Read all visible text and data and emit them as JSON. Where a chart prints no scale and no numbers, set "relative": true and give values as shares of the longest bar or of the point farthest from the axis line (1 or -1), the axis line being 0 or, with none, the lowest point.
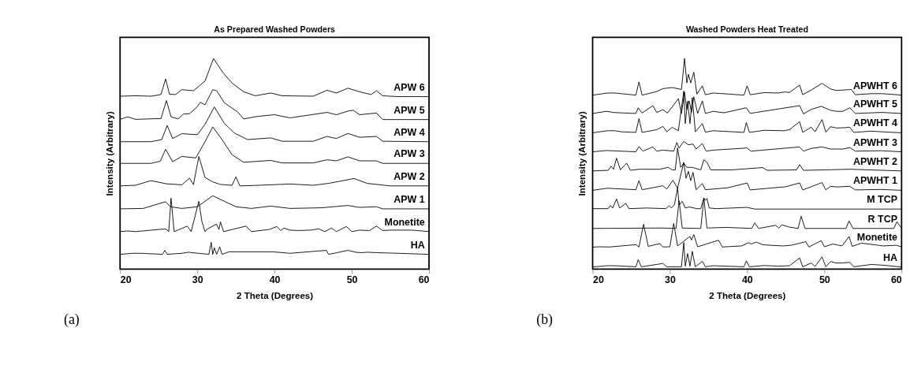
{
  "chart_data": [
    {
      "type": "line",
      "title": "As Prepared Washed Powders",
      "xlabel": "2 Theta (Degrees)",
      "ylabel": "Intensity (Arbitrary)",
      "xlim": [
        20,
        60
      ],
      "xticks": [
        20,
        30,
        40,
        50,
        60
      ],
      "relative": true,
      "tick_labels": "x",
      "annotations": [
        "(a)"
      ],
      "series": [
        {
          "name": "APW 6",
          "color": "#000000",
          "x": [
            20,
            22,
            24,
            25.3,
            25.9,
            26.4,
            27.2,
            28,
            29.5,
            31,
            32.1,
            33.3,
            34.5,
            36,
            37.5,
            39.5,
            41,
            45,
            46.8,
            48,
            49.5,
            51,
            52.5,
            53.2,
            54,
            56,
            60
          ],
          "values": [
            0.821,
            0.823,
            0.821,
            0.829,
            0.903,
            0.83,
            0.829,
            0.852,
            0.847,
            0.893,
            1.0,
            0.934,
            0.883,
            0.842,
            0.823,
            0.836,
            0.823,
            0.821,
            0.849,
            0.836,
            0.859,
            0.842,
            0.829,
            0.847,
            0.823,
            0.819,
            0.819
          ]
        },
        {
          "name": "APW 5",
          "color": "#000000",
          "x": [
            20,
            21,
            22,
            25.3,
            26,
            26.6,
            27.5,
            28.2,
            29,
            29.9,
            30.4,
            31,
            32,
            32.5,
            33.5,
            34.5,
            35.2,
            36,
            37.8,
            40,
            42,
            46.8,
            48,
            49.6,
            50.2,
            51,
            53.2,
            54,
            60
          ],
          "values": [
            0.711,
            0.723,
            0.711,
            0.715,
            0.8,
            0.723,
            0.713,
            0.736,
            0.738,
            0.767,
            0.792,
            0.78,
            0.852,
            0.847,
            0.79,
            0.764,
            0.747,
            0.713,
            0.725,
            0.733,
            0.718,
            0.744,
            0.733,
            0.751,
            0.754,
            0.733,
            0.741,
            0.71,
            0.71
          ]
        },
        {
          "name": "APW 4",
          "color": "#000000",
          "x": [
            20,
            24,
            25.4,
            26.1,
            26.8,
            28,
            30,
            31,
            32.2,
            33.5,
            34.8,
            36.5,
            39.5,
            41,
            45,
            46.8,
            48,
            49.5,
            51,
            53.2,
            54,
            60
          ],
          "values": [
            0.605,
            0.605,
            0.615,
            0.682,
            0.62,
            0.643,
            0.638,
            0.687,
            0.77,
            0.692,
            0.646,
            0.615,
            0.623,
            0.607,
            0.607,
            0.63,
            0.62,
            0.644,
            0.626,
            0.63,
            0.607,
            0.605
          ]
        },
        {
          "name": "APW 3",
          "color": "#000000",
          "x": [
            20,
            24,
            25.2,
            25.9,
            26.8,
            28,
            29.8,
            31,
            32,
            33.2,
            34.5,
            36,
            39.5,
            41,
            45,
            46.8,
            48,
            49.5,
            51,
            53.2,
            54,
            60
          ],
          "values": [
            0.502,
            0.502,
            0.512,
            0.569,
            0.51,
            0.535,
            0.528,
            0.605,
            0.675,
            0.615,
            0.543,
            0.507,
            0.516,
            0.504,
            0.504,
            0.519,
            0.514,
            0.533,
            0.514,
            0.514,
            0.502,
            0.502
          ]
        },
        {
          "name": "APW 2",
          "color": "#000000",
          "x": [
            20,
            22,
            24,
            26,
            28,
            29,
            29.5,
            30.2,
            31,
            32,
            33,
            34.5,
            35,
            35.5,
            38,
            42,
            45,
            47,
            50.3,
            52,
            55,
            60
          ],
          "values": [
            0.395,
            0.398,
            0.42,
            0.405,
            0.4,
            0.432,
            0.401,
            0.535,
            0.435,
            0.414,
            0.402,
            0.398,
            0.438,
            0.395,
            0.398,
            0.404,
            0.398,
            0.407,
            0.43,
            0.407,
            0.395,
            0.395
          ]
        },
        {
          "name": "APW 1",
          "color": "#000000",
          "x": [
            20,
            23,
            25.9,
            26.5,
            28,
            30,
            32,
            33.5,
            35,
            37,
            39.5,
            42,
            46,
            49.5,
            51,
            53.2,
            54,
            60
          ],
          "values": [
            0.286,
            0.288,
            0.32,
            0.296,
            0.288,
            0.296,
            0.348,
            0.322,
            0.296,
            0.288,
            0.299,
            0.288,
            0.291,
            0.302,
            0.293,
            0.296,
            0.286,
            0.286
          ]
        },
        {
          "name": "Monetite",
          "color": "#000000",
          "x": [
            20,
            21,
            22,
            25.9,
            26.3,
            26.6,
            27,
            28.7,
            29.2,
            30.2,
            30.6,
            31,
            31.2,
            32.5,
            32.8,
            33,
            33.4,
            36.3,
            37,
            39.3,
            40.3,
            40.8,
            41.2,
            42,
            43,
            44.7,
            45.7,
            46.5,
            47.4,
            48,
            49.3,
            50,
            51,
            52.3,
            53.2,
            54,
            55,
            57.8,
            60
          ],
          "values": [
            0.178,
            0.181,
            0.178,
            0.191,
            0.178,
            0.337,
            0.178,
            0.204,
            0.178,
            0.322,
            0.225,
            0.178,
            0.188,
            0.214,
            0.188,
            0.224,
            0.178,
            0.204,
            0.178,
            0.188,
            0.202,
            0.183,
            0.195,
            0.185,
            0.183,
            0.185,
            0.191,
            0.178,
            0.195,
            0.178,
            0.202,
            0.178,
            0.185,
            0.183,
            0.204,
            0.183,
            0.185,
            0.185,
            0.178
          ]
        },
        {
          "name": "HA",
          "color": "#000000",
          "x": [
            20,
            21.6,
            22.8,
            25.5,
            25.8,
            26.1,
            28,
            28.8,
            31.5,
            31.8,
            32.0,
            32.2,
            32.5,
            32.9,
            33.2,
            34.1,
            39.8,
            42,
            46.7,
            47,
            48.1,
            49.5,
            50.5,
            51.3,
            52,
            53.2,
            56,
            60
          ],
          "values": [
            0.07,
            0.075,
            0.075,
            0.07,
            0.089,
            0.07,
            0.075,
            0.08,
            0.07,
            0.127,
            0.07,
            0.101,
            0.07,
            0.106,
            0.07,
            0.082,
            0.082,
            0.075,
            0.089,
            0.07,
            0.078,
            0.089,
            0.08,
            0.078,
            0.08,
            0.078,
            0.075,
            0.07
          ]
        }
      ]
    },
    {
      "type": "line",
      "title": "Washed Powders Heat Treated",
      "xlabel": "2 Theta (Degrees)",
      "ylabel": "Intensity (Arbitrary)",
      "xlim": [
        20,
        60
      ],
      "xticks": [
        20,
        30,
        40,
        50,
        60
      ],
      "relative": true,
      "tick_labels": "x",
      "annotations": [
        "(b)"
      ],
      "series": [
        {
          "name": "APWHT 6",
          "color": "#000000",
          "x": [
            20,
            21.9,
            22.9,
            23.7,
            25.6,
            26.0,
            26.4,
            28.3,
            29.1,
            30.3,
            31.5,
            31.9,
            32.2,
            32.4,
            32.7,
            33.1,
            33.5,
            34.2,
            34.6,
            35.6,
            39.6,
            40.0,
            40.4,
            42.2,
            44.0,
            44.8,
            45.5,
            46.8,
            47.2,
            48.3,
            49.7,
            50.8,
            51.6,
            52.4,
            53.5,
            54,
            56.1,
            57.4,
            58.3,
            60
          ],
          "values": [
            0.826,
            0.836,
            0.836,
            0.833,
            0.826,
            0.889,
            0.826,
            0.843,
            0.857,
            0.862,
            0.853,
            1.0,
            0.884,
            0.925,
            0.884,
            0.935,
            0.831,
            0.87,
            0.828,
            0.836,
            0.826,
            0.87,
            0.828,
            0.838,
            0.836,
            0.841,
            0.839,
            0.874,
            0.828,
            0.85,
            0.882,
            0.855,
            0.848,
            0.85,
            0.853,
            0.828,
            0.833,
            0.833,
            0.831,
            0.826
          ]
        },
        {
          "name": "APWHT 5",
          "color": "#000000",
          "x": [
            20,
            21.8,
            22.9,
            25.6,
            25.9,
            26.4,
            27.8,
            28.3,
            29.1,
            29.7,
            31.1,
            31.5,
            31.9,
            32.2,
            32.5,
            32.8,
            33.1,
            33.6,
            34.2,
            34.6,
            35.6,
            37.0,
            39.9,
            40.4,
            41.2,
            46.8,
            47.3,
            48.3,
            49.6,
            50.8,
            51.6,
            52.4,
            53.3,
            54,
            57.4,
            60
          ],
          "values": [
            0.739,
            0.749,
            0.743,
            0.739,
            0.766,
            0.741,
            0.776,
            0.744,
            0.757,
            0.741,
            0.809,
            0.739,
            0.841,
            0.758,
            0.799,
            0.744,
            0.818,
            0.739,
            0.799,
            0.739,
            0.749,
            0.742,
            0.766,
            0.739,
            0.744,
            0.776,
            0.737,
            0.758,
            0.773,
            0.754,
            0.749,
            0.749,
            0.766,
            0.739,
            0.744,
            0.739
          ]
        },
        {
          "name": "APWHT 4",
          "color": "#000000",
          "x": [
            20,
            21.9,
            22.9,
            23.7,
            25.6,
            26.0,
            26.4,
            28.3,
            29.1,
            29.6,
            30.3,
            31.1,
            31.8,
            32.0,
            32.3,
            32.6,
            32.9,
            33.3,
            34.2,
            34.6,
            35.6,
            39.6,
            39.9,
            40.3,
            42.2,
            44.8,
            45.5,
            46.8,
            47.2,
            48.3,
            48.8,
            49.7,
            50.2,
            50.8,
            51.6,
            52.4,
            53.3,
            53.8,
            56.1,
            57.4,
            60
          ],
          "values": [
            0.647,
            0.657,
            0.657,
            0.652,
            0.649,
            0.715,
            0.649,
            0.662,
            0.678,
            0.652,
            0.673,
            0.657,
            0.845,
            0.691,
            0.797,
            0.691,
            0.814,
            0.652,
            0.691,
            0.65,
            0.657,
            0.649,
            0.696,
            0.649,
            0.659,
            0.657,
            0.662,
            0.7,
            0.649,
            0.674,
            0.652,
            0.71,
            0.65,
            0.676,
            0.67,
            0.671,
            0.673,
            0.649,
            0.655,
            0.652,
            0.647
          ]
        },
        {
          "name": "APWHT 3",
          "color": "#000000",
          "x": [
            20,
            21.8,
            25.6,
            26.0,
            26.5,
            27.8,
            28.3,
            29.1,
            30.5,
            30.9,
            31.2,
            31.8,
            32.4,
            33.0,
            33.4,
            34.2,
            34.7,
            35.7,
            40.0,
            40.5,
            46.8,
            47.3,
            48.3,
            49.7,
            50.8,
            52.4,
            53.3,
            54,
            57.4,
            60
          ],
          "values": [
            0.557,
            0.563,
            0.557,
            0.582,
            0.56,
            0.58,
            0.56,
            0.565,
            0.56,
            0.601,
            0.575,
            0.606,
            0.59,
            0.594,
            0.57,
            0.596,
            0.56,
            0.565,
            0.575,
            0.56,
            0.58,
            0.56,
            0.573,
            0.58,
            0.57,
            0.57,
            0.577,
            0.56,
            0.562,
            0.557
          ]
        },
        {
          "name": "APWHT 2",
          "color": "#000000",
          "x": [
            20,
            22.0,
            22.4,
            22.7,
            23.1,
            23.6,
            24.4,
            24.9,
            26.0,
            28.7,
            29.8,
            30.3,
            30.7,
            31.0,
            31.4,
            31.8,
            32.2,
            32.9,
            34.0,
            34.4,
            34.8,
            35.3,
            38.0,
            42.0,
            42.6,
            46.4,
            46.8,
            47.3,
            50,
            53.3,
            60
          ],
          "values": [
            0.466,
            0.469,
            0.488,
            0.474,
            0.527,
            0.471,
            0.503,
            0.469,
            0.474,
            0.474,
            0.483,
            0.471,
            0.471,
            0.575,
            0.483,
            0.503,
            0.483,
            0.483,
            0.471,
            0.519,
            0.507,
            0.471,
            0.471,
            0.482,
            0.469,
            0.471,
            0.496,
            0.469,
            0.471,
            0.474,
            0.466
          ]
        },
        {
          "name": "APWHT 1",
          "color": "#000000",
          "x": [
            20,
            21.9,
            22.9,
            25.6,
            26.0,
            26.4,
            28.3,
            29.1,
            29.6,
            30.4,
            31.0,
            31.8,
            32.1,
            32.4,
            32.7,
            33.0,
            33.4,
            34.2,
            34.6,
            37.5,
            40.0,
            40.4,
            45.0,
            46.8,
            47.2,
            48.3,
            49.7,
            50.2,
            50.8,
            51.6,
            53.3,
            54,
            57.4,
            60
          ],
          "values": [
            0.374,
            0.384,
            0.382,
            0.377,
            0.42,
            0.377,
            0.39,
            0.396,
            0.38,
            0.422,
            0.384,
            0.507,
            0.431,
            0.464,
            0.42,
            0.459,
            0.377,
            0.406,
            0.377,
            0.386,
            0.409,
            0.376,
            0.391,
            0.409,
            0.376,
            0.391,
            0.411,
            0.376,
            0.393,
            0.39,
            0.393,
            0.376,
            0.378,
            0.374
          ]
        },
        {
          "name": "M TCP",
          "color": "#000000",
          "x": [
            20,
            22.0,
            22.3,
            22.6,
            23.1,
            23.5,
            24.3,
            24.7,
            27,
            29.5,
            29.9,
            30.2,
            30.6,
            31.0,
            31.2,
            31.6,
            32.0,
            32.5,
            33.5,
            34.0,
            34.4,
            34.6,
            34.8,
            35.1,
            36,
            40,
            41,
            60
          ],
          "values": [
            0.287,
            0.287,
            0.302,
            0.29,
            0.333,
            0.29,
            0.312,
            0.287,
            0.29,
            0.287,
            0.301,
            0.29,
            0.306,
            0.386,
            0.304,
            0.322,
            0.29,
            0.295,
            0.287,
            0.287,
            0.338,
            0.326,
            0.336,
            0.29,
            0.287,
            0.293,
            0.285,
            0.285
          ]
        },
        {
          "name": "R TCP",
          "color": "#000000",
          "x": [
            20,
            28.8,
            30.8,
            31.2,
            31.6,
            34.0,
            34.4,
            34.8,
            37.3,
            40.6,
            41.0,
            41.5,
            43.7,
            44.1,
            44.5,
            45.4,
            46.6,
            47.0,
            47.5,
            52.8,
            53.2,
            53.7,
            59.0,
            59.4,
            60
          ],
          "values": [
            0.193,
            0.195,
            0.193,
            0.324,
            0.195,
            0.193,
            0.338,
            0.195,
            0.198,
            0.193,
            0.219,
            0.193,
            0.208,
            0.195,
            0.21,
            0.2,
            0.193,
            0.251,
            0.193,
            0.193,
            0.229,
            0.193,
            0.193,
            0.225,
            0.193
          ]
        },
        {
          "name": "Monetite",
          "color": "#000000",
          "x": [
            20,
            20.8,
            22.2,
            25.6,
            26.0,
            26.6,
            27.2,
            28.7,
            29.1,
            30.0,
            30.5,
            31.0,
            32.6,
            32.8,
            33.1,
            33.6,
            36.3,
            36.8,
            39.3,
            40.2,
            40.5,
            41.2,
            42,
            43,
            44.7,
            45.7,
            47.6,
            48,
            49.6,
            50,
            51.1,
            52.3,
            53.2,
            53.6,
            54.8,
            56.4,
            57.6,
            59.3,
            60
          ],
          "values": [
            0.104,
            0.106,
            0.105,
            0.116,
            0.105,
            0.213,
            0.108,
            0.121,
            0.105,
            0.106,
            0.217,
            0.11,
            0.155,
            0.138,
            0.164,
            0.106,
            0.137,
            0.105,
            0.11,
            0.126,
            0.119,
            0.128,
            0.116,
            0.113,
            0.11,
            0.113,
            0.13,
            0.105,
            0.135,
            0.106,
            0.119,
            0.11,
            0.155,
            0.108,
            0.123,
            0.116,
            0.11,
            0.113,
            0.106
          ]
        },
        {
          "name": "HA",
          "color": "#000000",
          "x": [
            20,
            21.9,
            22.9,
            25.6,
            25.9,
            26.3,
            28.3,
            29.1,
            29.6,
            31.5,
            31.8,
            32.0,
            32.3,
            32.6,
            32.9,
            33.3,
            34.2,
            34.6,
            35.6,
            39.6,
            39.9,
            40.3,
            42.2,
            44.0,
            45.5,
            46.8,
            47.2,
            48.3,
            48.8,
            49.7,
            50.2,
            50.8,
            51.5,
            52.2,
            53.3,
            53.8,
            56.1,
            57.4,
            60
          ],
          "values": [
            0.01,
            0.016,
            0.016,
            0.011,
            0.045,
            0.011,
            0.022,
            0.027,
            0.011,
            0.011,
            0.126,
            0.014,
            0.074,
            0.014,
            0.084,
            0.011,
            0.037,
            0.011,
            0.016,
            0.011,
            0.039,
            0.011,
            0.017,
            0.014,
            0.016,
            0.053,
            0.011,
            0.029,
            0.013,
            0.058,
            0.011,
            0.036,
            0.029,
            0.029,
            0.032,
            0.011,
            0.022,
            0.019,
            0.01
          ]
        }
      ]
    }
  ]
}
